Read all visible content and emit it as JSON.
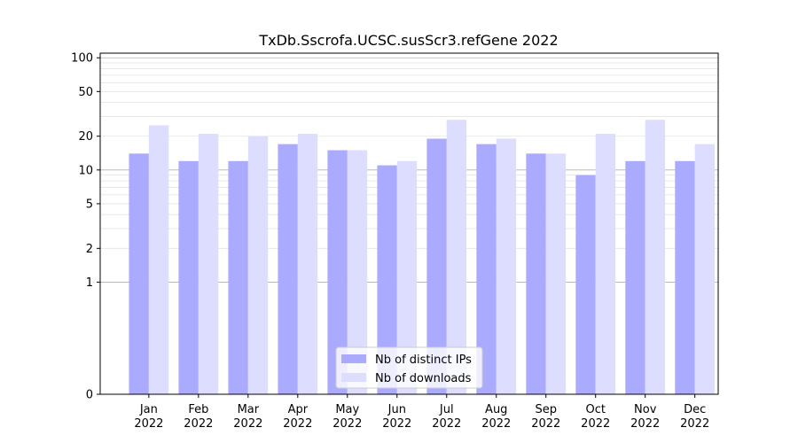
{
  "chart_data": {
    "type": "bar",
    "title": "TxDb.Sscrofa.UCSC.susScr3.refGene 2022",
    "xlabel": "",
    "ylabel": "",
    "yscale": "symlog",
    "ylim": [
      0,
      110
    ],
    "yticks": [
      0,
      1,
      2,
      5,
      10,
      20,
      50,
      100
    ],
    "categories": [
      "Jan\n2022",
      "Feb\n2022",
      "Mar\n2022",
      "Apr\n2022",
      "May\n2022",
      "Jun\n2022",
      "Jul\n2022",
      "Aug\n2022",
      "Sep\n2022",
      "Oct\n2022",
      "Nov\n2022",
      "Dec\n2022"
    ],
    "series": [
      {
        "name": "Nb of distinct IPs",
        "color": "#aaaaff",
        "values": [
          14,
          12,
          12,
          17,
          15,
          11,
          19,
          17,
          14,
          9,
          12,
          12
        ]
      },
      {
        "name": "Nb of downloads",
        "color": "#ddddff",
        "values": [
          25,
          21,
          20,
          21,
          15,
          12,
          28,
          19,
          14,
          21,
          28,
          17
        ]
      }
    ],
    "legend": "lower-center",
    "grid": true
  }
}
